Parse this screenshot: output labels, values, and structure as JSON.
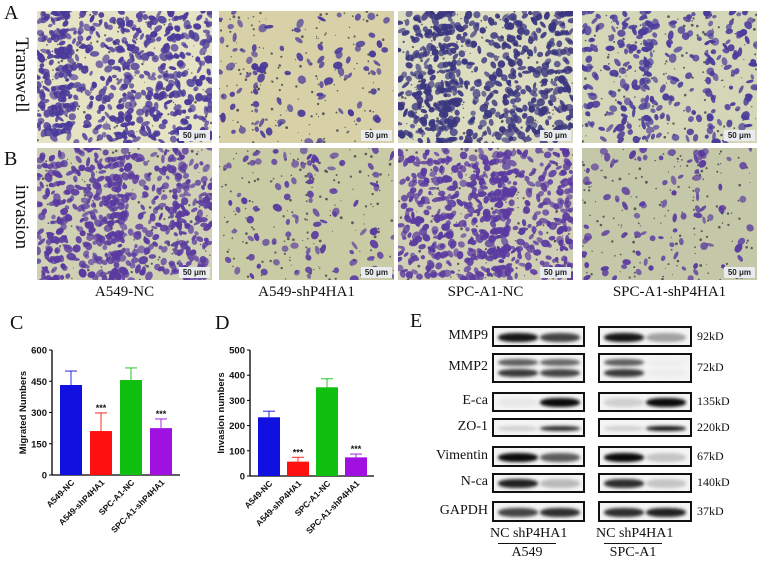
{
  "panels": {
    "A": "A",
    "B": "B",
    "C": "C",
    "D": "D",
    "E": "E"
  },
  "row_labels": {
    "transwell": "Transwell",
    "invasion": "invasion"
  },
  "micrographs": {
    "scale_bar": "50 μm",
    "columns": [
      "A549-NC",
      "A549-shP4HA1",
      "SPC-A1-NC",
      "SPC-A1-shP4HA1"
    ],
    "density": {
      "transwell": [
        "high",
        "low",
        "high",
        "medium"
      ],
      "invasion": [
        "high",
        "low",
        "high",
        "low"
      ]
    }
  },
  "chart_data": [
    {
      "panel": "C",
      "type": "bar",
      "title": "",
      "xlabel": "",
      "ylabel": "Migrated Numbers",
      "ylim": [
        0,
        600
      ],
      "yticks": [
        0,
        150,
        300,
        450,
        600
      ],
      "categories": [
        "A549-NC",
        "A549-shP4HA1",
        "SPC-A1-NC",
        "SPC-A1-shP4HA1"
      ],
      "values": [
        432,
        211,
        456,
        225
      ],
      "error_upper": [
        499,
        298,
        514,
        269
      ],
      "colors": [
        "#1010e0",
        "#ff1010",
        "#10c010",
        "#a010e0"
      ],
      "annotations": [
        "",
        "***",
        "",
        "***"
      ],
      "grid": false,
      "legend": null
    },
    {
      "panel": "D",
      "type": "bar",
      "title": "",
      "xlabel": "",
      "ylabel": "Invasion numbers",
      "ylim": [
        0,
        500
      ],
      "yticks": [
        0,
        100,
        200,
        300,
        400,
        500
      ],
      "categories": [
        "A549-NC",
        "A549-shP4HA1",
        "SPC-A1-NC",
        "SPC-A1-shP4HA1"
      ],
      "values": [
        233,
        57,
        352,
        74
      ],
      "error_upper": [
        257,
        74,
        386,
        87
      ],
      "colors": [
        "#1010e0",
        "#ff1010",
        "#10c010",
        "#a010e0"
      ],
      "annotations": [
        "",
        "***",
        "",
        "***"
      ],
      "grid": false,
      "legend": null
    }
  ],
  "western_blot": {
    "proteins": [
      {
        "name": "MMP9",
        "kd": "92kD"
      },
      {
        "name": "MMP2",
        "kd": "72kD"
      },
      {
        "name": "E-ca",
        "kd": "135kD"
      },
      {
        "name": "ZO-1",
        "kd": "220kD"
      },
      {
        "name": "Vimentin",
        "kd": "67kD"
      },
      {
        "name": "N-ca",
        "kd": "140kD"
      },
      {
        "name": "GAPDH",
        "kd": "37kD"
      }
    ],
    "groups": [
      {
        "lanes": "NC shP4HA1",
        "lane_nc": "NC",
        "lane_sh": "shP4HA1",
        "cell_line": "A549"
      },
      {
        "lanes": "NC shP4HA1",
        "lane_nc": "NC",
        "lane_sh": "shP4HA1",
        "cell_line": "SPC-A1"
      }
    ]
  }
}
